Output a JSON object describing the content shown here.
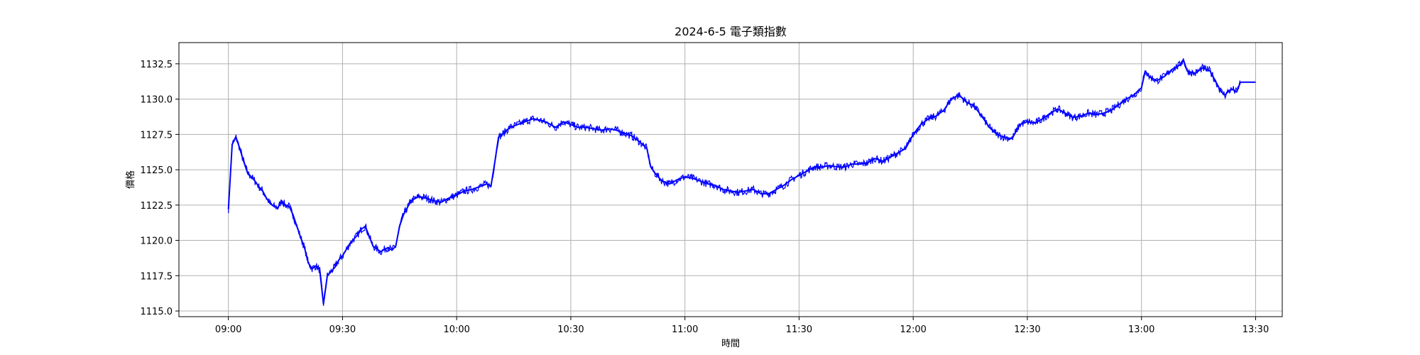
{
  "chart_data": {
    "type": "line",
    "title": "2024-6-5 電子類指數",
    "xlabel": "時間",
    "ylabel": "價格",
    "x_ticks": [
      "09:00",
      "09:30",
      "10:00",
      "10:30",
      "11:00",
      "11:30",
      "12:00",
      "12:30",
      "13:00",
      "13:30"
    ],
    "y_ticks": [
      "1115.0",
      "1117.5",
      "1120.0",
      "1122.5",
      "1125.0",
      "1127.5",
      "1130.0",
      "1132.5"
    ],
    "xlim": [
      "08:47",
      "13:37"
    ],
    "ylim": [
      1114.6,
      1134.0
    ],
    "grid": true,
    "series": [
      {
        "color": "#0000ff",
        "x": [
          "09:00",
          "09:01",
          "09:02",
          "09:03",
          "09:04",
          "09:05",
          "09:06",
          "09:07",
          "09:08",
          "09:09",
          "09:10",
          "09:11",
          "09:12",
          "09:13",
          "09:14",
          "09:15",
          "09:16",
          "09:17",
          "09:18",
          "09:19",
          "09:20",
          "09:21",
          "09:22",
          "09:23",
          "09:24",
          "09:25",
          "09:26",
          "09:27",
          "09:28",
          "09:29",
          "09:30",
          "09:32",
          "09:34",
          "09:35",
          "09:36",
          "09:38",
          "09:40",
          "09:42",
          "09:43",
          "09:44",
          "09:45",
          "09:46",
          "09:48",
          "09:50",
          "09:52",
          "09:54",
          "09:56",
          "09:58",
          "10:00",
          "10:02",
          "10:04",
          "10:06",
          "10:08",
          "10:09",
          "10:10",
          "10:11",
          "10:12",
          "10:14",
          "10:16",
          "10:18",
          "10:20",
          "10:22",
          "10:24",
          "10:26",
          "10:28",
          "10:30",
          "10:32",
          "10:34",
          "10:36",
          "10:38",
          "10:40",
          "10:42",
          "10:44",
          "10:46",
          "10:48",
          "10:50",
          "10:51",
          "10:52",
          "10:54",
          "10:56",
          "10:58",
          "11:00",
          "11:02",
          "11:04",
          "11:06",
          "11:08",
          "11:10",
          "11:12",
          "11:14",
          "11:16",
          "11:18",
          "11:20",
          "11:22",
          "11:24",
          "11:26",
          "11:28",
          "11:30",
          "11:32",
          "11:34",
          "11:36",
          "11:38",
          "11:40",
          "11:42",
          "11:44",
          "11:46",
          "11:48",
          "11:50",
          "11:52",
          "11:54",
          "11:56",
          "11:58",
          "12:00",
          "12:02",
          "12:04",
          "12:06",
          "12:08",
          "12:10",
          "12:12",
          "12:14",
          "12:16",
          "12:18",
          "12:20",
          "12:22",
          "12:24",
          "12:26",
          "12:28",
          "12:30",
          "12:32",
          "12:34",
          "12:36",
          "12:38",
          "12:40",
          "12:42",
          "12:44",
          "12:46",
          "12:48",
          "12:50",
          "12:52",
          "12:54",
          "12:56",
          "12:58",
          "13:00",
          "13:01",
          "13:02",
          "13:04",
          "13:06",
          "13:08",
          "13:10",
          "13:11",
          "13:12",
          "13:14",
          "13:16",
          "13:18",
          "13:19",
          "13:20",
          "13:21",
          "13:22",
          "13:23",
          "13:24",
          "13:25",
          "13:26",
          "13:30"
        ],
        "y": [
          1122.2,
          1126.8,
          1127.3,
          1126.5,
          1125.6,
          1124.8,
          1124.5,
          1124.2,
          1123.8,
          1123.5,
          1123.0,
          1122.6,
          1122.4,
          1122.3,
          1122.8,
          1122.5,
          1122.4,
          1121.8,
          1121.0,
          1120.2,
          1119.5,
          1118.4,
          1118.0,
          1118.2,
          1117.9,
          1115.5,
          1117.5,
          1117.8,
          1118.1,
          1118.6,
          1118.9,
          1119.8,
          1120.4,
          1120.8,
          1121.0,
          1119.6,
          1119.2,
          1119.5,
          1119.3,
          1119.6,
          1121.0,
          1121.8,
          1122.8,
          1123.1,
          1123.0,
          1122.8,
          1122.7,
          1123.0,
          1123.2,
          1123.5,
          1123.6,
          1123.8,
          1124.0,
          1123.8,
          1125.5,
          1127.3,
          1127.5,
          1128.0,
          1128.2,
          1128.4,
          1128.6,
          1128.5,
          1128.3,
          1128.0,
          1128.4,
          1128.2,
          1128.0,
          1128.0,
          1127.9,
          1127.8,
          1127.9,
          1127.8,
          1127.6,
          1127.4,
          1127.0,
          1126.5,
          1125.2,
          1124.8,
          1124.2,
          1124.0,
          1124.3,
          1124.5,
          1124.4,
          1124.2,
          1124.0,
          1123.9,
          1123.6,
          1123.5,
          1123.4,
          1123.5,
          1123.6,
          1123.3,
          1123.3,
          1123.6,
          1123.9,
          1124.3,
          1124.6,
          1124.9,
          1125.2,
          1125.2,
          1125.3,
          1125.2,
          1125.2,
          1125.4,
          1125.4,
          1125.5,
          1125.8,
          1125.6,
          1125.9,
          1126.2,
          1126.5,
          1127.5,
          1128.2,
          1128.6,
          1128.8,
          1129.2,
          1130.0,
          1130.3,
          1129.8,
          1129.5,
          1128.8,
          1128.0,
          1127.5,
          1127.3,
          1127.2,
          1128.2,
          1128.4,
          1128.3,
          1128.6,
          1129.0,
          1129.3,
          1129.0,
          1128.7,
          1128.8,
          1129.0,
          1128.9,
          1129.0,
          1129.2,
          1129.6,
          1130.0,
          1130.3,
          1130.8,
          1132.0,
          1131.6,
          1131.3,
          1131.6,
          1132.1,
          1132.4,
          1132.8,
          1132.0,
          1131.8,
          1132.2,
          1132.0,
          1131.5,
          1131.0,
          1130.5,
          1130.3,
          1130.6,
          1130.7,
          1130.5,
          1131.2,
          1131.2
        ]
      }
    ]
  }
}
